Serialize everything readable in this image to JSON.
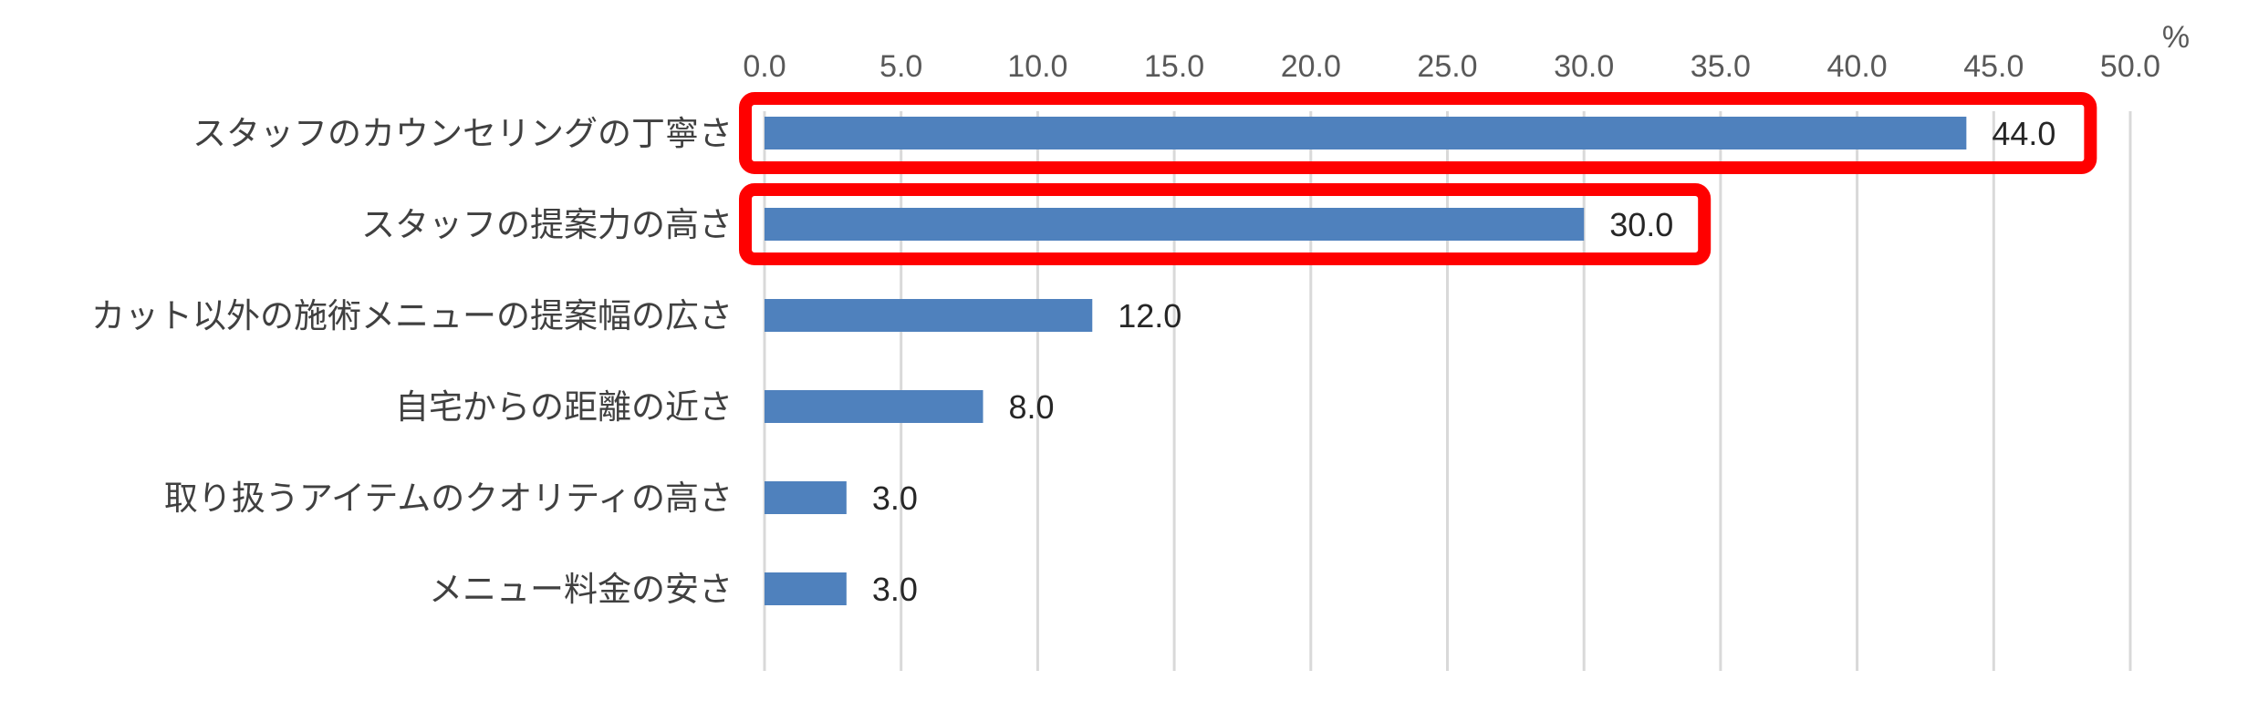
{
  "chart_data": {
    "type": "bar",
    "orientation": "horizontal",
    "title": "",
    "unit_label": "%",
    "xlim": [
      0,
      50
    ],
    "tick_step": 5,
    "tick_labels": [
      "0.0",
      "5.0",
      "10.0",
      "15.0",
      "20.0",
      "25.0",
      "30.0",
      "35.0",
      "40.0",
      "45.0",
      "50.0"
    ],
    "axis_position": "top",
    "grid": true,
    "categories": [
      "スタッフのカウンセリングの丁寧さ",
      "スタッフの提案力の高さ",
      "カット以外の施術メニューの提案幅の広さ",
      "自宅からの距離の近さ",
      "取り扱うアイテムのクオリティの高さ",
      "メニュー料金の安さ"
    ],
    "values": [
      44.0,
      30.0,
      12.0,
      8.0,
      3.0,
      3.0
    ],
    "value_labels": [
      "44.0",
      "30.0",
      "12.0",
      "8.0",
      "3.0",
      "3.0"
    ],
    "highlighted_categories": [
      0,
      1
    ],
    "bar_color": "#4f81bd",
    "highlight_color": "#ff0000",
    "grid_color": "#d9d9d9"
  }
}
